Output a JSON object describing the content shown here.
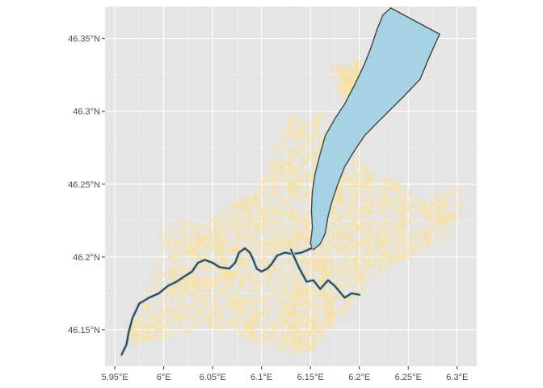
{
  "chart_data": {
    "type": "map",
    "title": "",
    "xlabel": "",
    "ylabel": "",
    "xlim": [
      5.94,
      6.32
    ],
    "ylim": [
      46.125,
      46.372
    ],
    "x_ticks": [
      {
        "value": 5.95,
        "label": "5.95°E"
      },
      {
        "value": 6.0,
        "label": "6°E"
      },
      {
        "value": 6.05,
        "label": "6.05°E"
      },
      {
        "value": 6.1,
        "label": "6.1°E"
      },
      {
        "value": 6.15,
        "label": "6.15°E"
      },
      {
        "value": 6.2,
        "label": "6.2°E"
      },
      {
        "value": 6.25,
        "label": "6.25°E"
      },
      {
        "value": 6.3,
        "label": "6.3°E"
      }
    ],
    "y_ticks": [
      {
        "value": 46.15,
        "label": "46.15°N"
      },
      {
        "value": 46.2,
        "label": "46.2°N"
      },
      {
        "value": 46.25,
        "label": "46.25°N"
      },
      {
        "value": 46.3,
        "label": "46.3°N"
      },
      {
        "value": 46.35,
        "label": "46.35°N"
      }
    ],
    "layers": {
      "roads": {
        "color": "#ffe08a",
        "description": "road network"
      },
      "lake": {
        "fill": "#a6d3e3",
        "stroke": "#444444",
        "polygon": [
          [
            6.232,
            46.371
          ],
          [
            6.282,
            46.353
          ],
          [
            6.272,
            46.338
          ],
          [
            6.262,
            46.322
          ],
          [
            6.245,
            46.31
          ],
          [
            6.23,
            46.3
          ],
          [
            6.218,
            46.292
          ],
          [
            6.205,
            46.283
          ],
          [
            6.195,
            46.273
          ],
          [
            6.185,
            46.262
          ],
          [
            6.178,
            46.25
          ],
          [
            6.172,
            46.238
          ],
          [
            6.168,
            46.228
          ],
          [
            6.165,
            46.216
          ],
          [
            6.16,
            46.209
          ],
          [
            6.153,
            46.205
          ],
          [
            6.15,
            46.209
          ],
          [
            6.152,
            46.22
          ],
          [
            6.151,
            46.232
          ],
          [
            6.152,
            46.245
          ],
          [
            6.155,
            46.258
          ],
          [
            6.16,
            46.271
          ],
          [
            6.165,
            46.283
          ],
          [
            6.175,
            46.295
          ],
          [
            6.185,
            46.305
          ],
          [
            6.195,
            46.318
          ],
          [
            6.205,
            46.332
          ],
          [
            6.212,
            46.344
          ],
          [
            6.218,
            46.356
          ],
          [
            6.224,
            46.366
          ]
        ]
      },
      "rivers": [
        {
          "name": "rhone",
          "points": [
            [
              6.151,
              46.206
            ],
            [
              6.141,
              46.203
            ],
            [
              6.132,
              46.202
            ],
            [
              6.124,
              46.203
            ],
            [
              6.116,
              46.201
            ],
            [
              6.11,
              46.195
            ],
            [
              6.106,
              46.192
            ],
            [
              6.1,
              46.19
            ],
            [
              6.095,
              46.192
            ],
            [
              6.091,
              46.199
            ],
            [
              6.088,
              46.203
            ],
            [
              6.083,
              46.206
            ],
            [
              6.077,
              46.203
            ],
            [
              6.073,
              46.196
            ],
            [
              6.067,
              46.192
            ],
            [
              6.057,
              46.193
            ],
            [
              6.05,
              46.196
            ],
            [
              6.042,
              46.198
            ],
            [
              6.035,
              46.196
            ],
            [
              6.029,
              46.19
            ],
            [
              6.022,
              46.187
            ],
            [
              6.013,
              46.183
            ],
            [
              6.004,
              46.18
            ],
            [
              5.995,
              46.175
            ],
            [
              5.985,
              46.172
            ],
            [
              5.975,
              46.168
            ],
            [
              5.968,
              46.158
            ],
            [
              5.964,
              46.148
            ],
            [
              5.962,
              46.14
            ],
            [
              5.957,
              46.133
            ]
          ]
        },
        {
          "name": "arve",
          "points": [
            [
              6.13,
              46.205
            ],
            [
              6.138,
              46.193
            ],
            [
              6.146,
              46.183
            ],
            [
              6.153,
              46.184
            ],
            [
              6.16,
              46.178
            ],
            [
              6.168,
              46.184
            ],
            [
              6.175,
              46.18
            ],
            [
              6.18,
              46.176
            ],
            [
              6.185,
              46.172
            ],
            [
              6.192,
              46.175
            ],
            [
              6.2,
              46.174
            ]
          ]
        }
      ]
    }
  }
}
